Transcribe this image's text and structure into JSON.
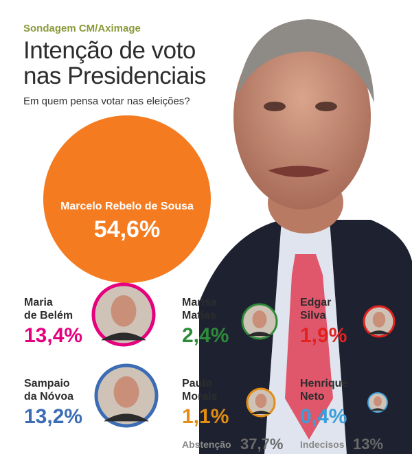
{
  "header": {
    "kicker": "Sondagem CM/Aximage",
    "title_line1": "Intenção de voto",
    "title_line2": "nas Presidenciais",
    "subtitle": "Em quem pensa votar nas eleições?"
  },
  "colors": {
    "marcelo": "#f47b20",
    "belem": "#e5007e",
    "novoa": "#3b6cb4",
    "matias": "#2e8b3a",
    "silva": "#e2221f",
    "morais": "#e38d13",
    "neto": "#3a9fd8",
    "kicker": "#8a9a3a"
  },
  "chart_data": {
    "type": "bubble",
    "unit": "%",
    "candidates": [
      {
        "name_line1": "Marcelo Rebelo de Sousa",
        "name_line2": "",
        "value": 54.6,
        "label": "54,6%",
        "color": "#f47b20"
      },
      {
        "name_line1": "Maria",
        "name_line2": "de Belém",
        "value": 13.4,
        "label": "13,4%",
        "color": "#e5007e"
      },
      {
        "name_line1": "Marisa",
        "name_line2": "Matias",
        "value": 2.4,
        "label": "2,4%",
        "color": "#2e8b3a"
      },
      {
        "name_line1": "Edgar",
        "name_line2": "Silva",
        "value": 1.9,
        "label": "1,9%",
        "color": "#e2221f"
      },
      {
        "name_line1": "Sampaio",
        "name_line2": "da Nóvoa",
        "value": 13.2,
        "label": "13,2%",
        "color": "#3b6cb4"
      },
      {
        "name_line1": "Paulo",
        "name_line2": "Morais",
        "value": 1.1,
        "label": "1,1%",
        "color": "#e38d13"
      },
      {
        "name_line1": "Henrique",
        "name_line2": "Neto",
        "value": 0.4,
        "label": "0,4%",
        "color": "#3a9fd8"
      }
    ],
    "footer": [
      {
        "label": "Abstenção",
        "value": 37.7,
        "value_label": "37,7%"
      },
      {
        "label": "Indecisos",
        "value": 13,
        "value_label": "13%"
      }
    ]
  }
}
